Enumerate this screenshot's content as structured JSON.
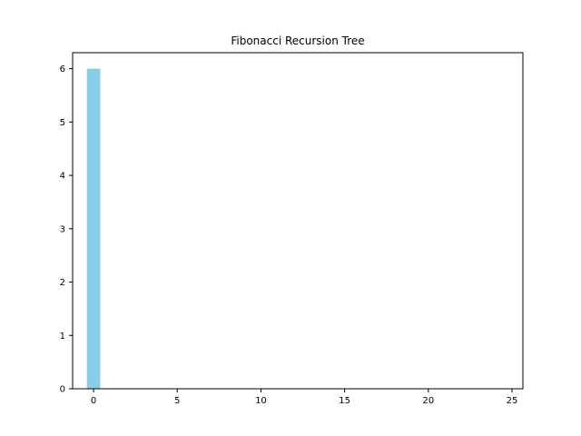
{
  "chart_data": {
    "type": "bar",
    "title": "Fibonacci Recursion Tree",
    "xlabel": "",
    "ylabel": "",
    "x": [
      0
    ],
    "values": [
      6
    ],
    "bar_width": 0.8,
    "xlim": [
      -1.25,
      25.65
    ],
    "ylim": [
      0,
      6.3
    ],
    "xticks": [
      0,
      5,
      10,
      15,
      20,
      25
    ],
    "yticks": [
      0,
      1,
      2,
      3,
      4,
      5,
      6
    ],
    "grid": false,
    "legend": "none",
    "bar_color": "#87ceeb"
  }
}
